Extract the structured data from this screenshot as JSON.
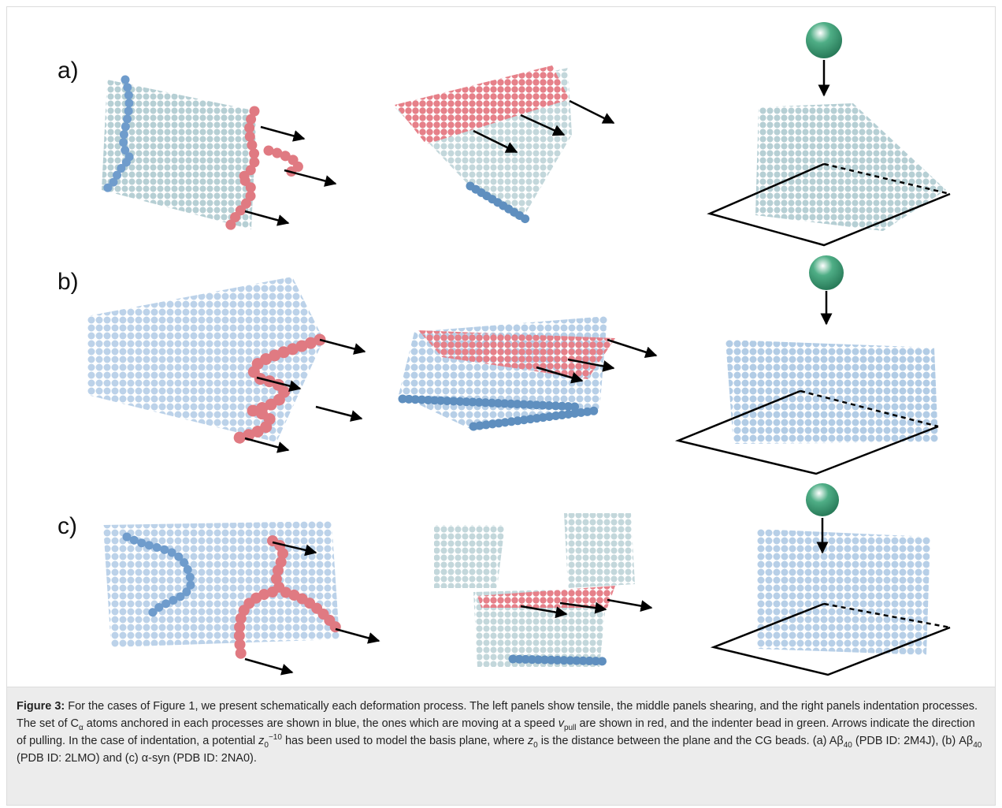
{
  "figure": {
    "panel_labels": [
      "a)",
      "b)",
      "c)"
    ]
  },
  "caption": {
    "label": "Figure 3:",
    "segments": [
      "For the cases of Figure 1, we present schematically each deformation process. The left panels show tensile, the middle panels shearing, and the right panels indentation processes. The set of C",
      "α",
      " atoms anchored in each processes are shown in blue, the ones which are moving at a speed ",
      "v",
      "pull",
      " are shown in red, and the indenter bead in green. Arrows indicate the direction of pulling. In the case of indentation, a potential ",
      "z",
      "0",
      "−10",
      " has been used to model the basis plane, where ",
      "z",
      "0",
      " is the distance between the plane and the CG beads. (a) Aβ",
      "40",
      " (PDB ID: 2M4J), (b) Aβ",
      "40",
      " (PDB ID: 2LMO) and (c) α-syn (PDB ID: 2NA0)."
    ]
  }
}
